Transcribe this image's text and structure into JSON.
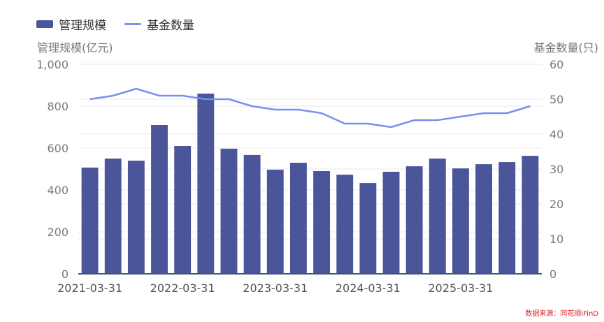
{
  "legend": {
    "bar_label": "管理规模",
    "line_label": "基金数量"
  },
  "axes": {
    "left_title": "管理规模(亿元)",
    "right_title": "基金数量(只)"
  },
  "colors": {
    "bar": "#4a5699",
    "line": "#7b8ff0",
    "grid": "#e8e8ee",
    "axis_text": "#777777",
    "source": "#e02020"
  },
  "source_text": "数据来源：同花顺iFinD",
  "chart_data": {
    "type": "bar",
    "title": "",
    "xlabel": "",
    "ylabel": "管理规模(亿元)",
    "ylabel_right": "基金数量(只)",
    "ylim": [
      0,
      1000
    ],
    "ylim_right": [
      0,
      60
    ],
    "yticks": [
      "0",
      "200",
      "400",
      "600",
      "800",
      "1,000"
    ],
    "yticks_right": [
      "0",
      "10",
      "20",
      "30",
      "40",
      "50",
      "60"
    ],
    "xtick_labels": [
      "2021-03-31",
      "2022-03-31",
      "2023-03-31",
      "2024-03-31",
      "2025-03-31"
    ],
    "grid": true,
    "legend_position": "top-left",
    "categories": [
      "2021-03-31",
      "2021-06-30",
      "2021-09-30",
      "2021-12-31",
      "2022-03-31",
      "2022-06-30",
      "2022-09-30",
      "2022-12-31",
      "2023-03-31",
      "2023-06-30",
      "2023-09-30",
      "2023-12-31",
      "2024-03-31",
      "2024-06-30",
      "2024-09-30",
      "2024-12-31",
      "2025-03-31",
      "2025-06-30",
      "2025-09-30",
      "2025-12-31"
    ],
    "series": [
      {
        "name": "管理规模",
        "type": "bar",
        "axis": "left",
        "values": [
          507,
          550,
          540,
          710,
          610,
          860,
          597,
          567,
          497,
          530,
          490,
          473,
          433,
          487,
          513,
          550,
          503,
          523,
          533,
          563
        ]
      },
      {
        "name": "基金数量",
        "type": "line",
        "axis": "right",
        "values": [
          50,
          51,
          53,
          51,
          51,
          50,
          50,
          48,
          47,
          47,
          46,
          43,
          43,
          42,
          44,
          44,
          45,
          46,
          46,
          48
        ]
      }
    ]
  }
}
